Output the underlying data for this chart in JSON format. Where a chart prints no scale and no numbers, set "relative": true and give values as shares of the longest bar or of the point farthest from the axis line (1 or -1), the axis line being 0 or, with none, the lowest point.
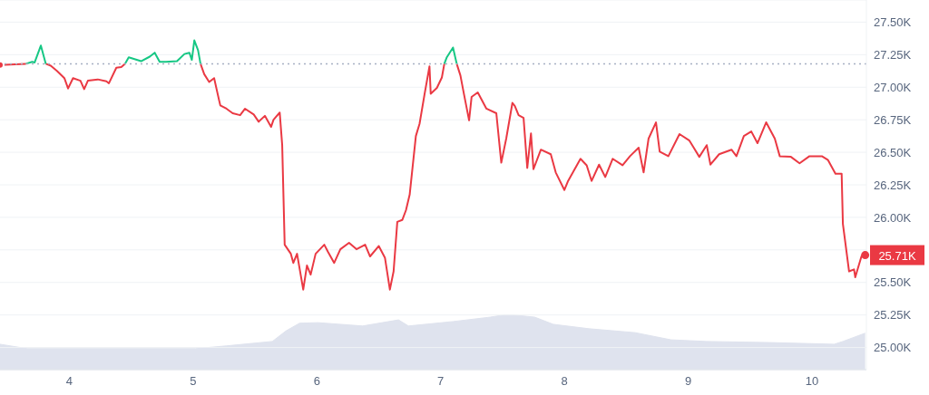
{
  "chart_data": [
    {
      "type": "line",
      "x": [
        3.44,
        3.65,
        3.7,
        3.72,
        3.77,
        3.81,
        3.85,
        3.9,
        3.96,
        3.99,
        4.03,
        4.09,
        4.12,
        4.15,
        4.23,
        4.3,
        4.32,
        4.38,
        4.42,
        4.45,
        4.48,
        4.58,
        4.65,
        4.69,
        4.73,
        4.78,
        4.87,
        4.93,
        4.97,
        4.99,
        5.01,
        5.04,
        5.06,
        5.09,
        5.13,
        5.17,
        5.21,
        5.22,
        5.27,
        5.32,
        5.38,
        5.42,
        5.49,
        5.53,
        5.58,
        5.63,
        5.65,
        5.7,
        5.72,
        5.74,
        5.79,
        5.81,
        5.84,
        5.89,
        5.92,
        5.95,
        5.99,
        6.06,
        6.09,
        6.14,
        6.19,
        6.26,
        6.32,
        6.39,
        6.43,
        6.5,
        6.55,
        6.59,
        6.62,
        6.65,
        6.69,
        6.72,
        6.75,
        6.8,
        6.83,
        6.87,
        6.91,
        6.92,
        6.97,
        7.01,
        7.03,
        7.05,
        7.1,
        7.13,
        7.16,
        7.19,
        7.23,
        7.25,
        7.3,
        7.37,
        7.45,
        7.49,
        7.53,
        7.58,
        7.6,
        7.63,
        7.67,
        7.7,
        7.73,
        7.75,
        7.81,
        7.89,
        7.93,
        8.0,
        8.03,
        8.13,
        8.18,
        8.22,
        8.28,
        8.33,
        8.39,
        8.47,
        8.53,
        8.6,
        8.64,
        8.68,
        8.74,
        8.77,
        8.84,
        8.93,
        9.01,
        9.09,
        9.15,
        9.18,
        9.25,
        9.35,
        9.39,
        9.45,
        9.51,
        9.56,
        9.63,
        9.7,
        9.74,
        9.83,
        9.9,
        9.98,
        10.08,
        10.13,
        10.19,
        10.24,
        10.25,
        10.3,
        10.34,
        10.35,
        10.4,
        10.43
      ],
      "series": [
        {
          "color": "#ea3943",
          "values": [
            27170,
            27180,
            null,
            null,
            null,
            27180,
            27165,
            27125,
            27070,
            26990,
            27070,
            27050,
            26985,
            27050,
            27060,
            27045,
            27030,
            27150,
            27155,
            27180,
            null,
            null,
            null,
            null,
            null,
            null,
            null,
            null,
            null,
            null,
            null,
            null,
            27180,
            27100,
            27040,
            27070,
            26900,
            26860,
            26835,
            26800,
            26785,
            26835,
            26790,
            26735,
            26780,
            26695,
            26750,
            26805,
            26555,
            25790,
            25720,
            25650,
            25720,
            25445,
            25630,
            25560,
            25720,
            25790,
            25735,
            25650,
            25755,
            25805,
            25755,
            25790,
            25700,
            25780,
            25690,
            25445,
            25585,
            25965,
            25980,
            26055,
            26175,
            26625,
            26720,
            26945,
            27160,
            26950,
            26995,
            27075,
            27180,
            null,
            null,
            27180,
            27090,
            26940,
            26745,
            26925,
            26960,
            26835,
            26800,
            26420,
            26605,
            26880,
            26855,
            26785,
            26765,
            26380,
            26645,
            26370,
            26520,
            26485,
            26345,
            26210,
            26280,
            26450,
            26400,
            26280,
            26405,
            26310,
            26450,
            26400,
            26470,
            26535,
            26345,
            26605,
            26730,
            26505,
            26470,
            26640,
            26590,
            26465,
            26555,
            26405,
            26485,
            26520,
            26470,
            26625,
            26660,
            26570,
            26730,
            26605,
            26470,
            26465,
            26415,
            26470,
            26470,
            26440,
            26335,
            26335,
            25950,
            25585,
            25600,
            25540,
            25700,
            25710
          ]
        },
        {
          "color": "#16c784",
          "values": [
            null,
            27180,
            27195,
            27190,
            27320,
            27180,
            null,
            null,
            null,
            null,
            null,
            null,
            null,
            null,
            null,
            null,
            null,
            null,
            null,
            27180,
            27230,
            27200,
            27235,
            27265,
            27195,
            27195,
            27200,
            27255,
            27265,
            27210,
            27360,
            27285,
            27180,
            null,
            null,
            null,
            null,
            null,
            null,
            null,
            null,
            null,
            null,
            null,
            null,
            null,
            null,
            null,
            null,
            null,
            null,
            null,
            null,
            null,
            null,
            null,
            null,
            null,
            null,
            null,
            null,
            null,
            null,
            null,
            null,
            null,
            null,
            null,
            null,
            null,
            null,
            null,
            null,
            null,
            null,
            null,
            null,
            null,
            null,
            null,
            27180,
            27230,
            27305,
            27180,
            null,
            null,
            null,
            null,
            null,
            null,
            null,
            null,
            null,
            null,
            null,
            null,
            null,
            null,
            null,
            null,
            null,
            null,
            null,
            null,
            null,
            null,
            null,
            null,
            null,
            null,
            null,
            null,
            null,
            null,
            null,
            null,
            null,
            null,
            null,
            null,
            null,
            null,
            null,
            null,
            null,
            null,
            null,
            null,
            null,
            null,
            null,
            null,
            null,
            null,
            null,
            null,
            null,
            null,
            null,
            null,
            null,
            null,
            null,
            null,
            null,
            null
          ]
        }
      ],
      "xlim": [
        3.44,
        10.44
      ],
      "ylim": [
        24830,
        27670
      ],
      "yticks": [
        {
          "value": 25000,
          "label": "25.00K"
        },
        {
          "value": 25250,
          "label": "25.25K"
        },
        {
          "value": 25500,
          "label": "25.50K"
        },
        {
          "value": 25750,
          "label": null
        },
        {
          "value": 26000,
          "label": "26.00K"
        },
        {
          "value": 26250,
          "label": "26.25K"
        },
        {
          "value": 26500,
          "label": "26.50K"
        },
        {
          "value": 26750,
          "label": "26.75K"
        },
        {
          "value": 27000,
          "label": "27.00K"
        },
        {
          "value": 27250,
          "label": "27.25K"
        },
        {
          "value": 27500,
          "label": "27.50K"
        }
      ],
      "ref_lines": [
        {
          "axis": "y",
          "value": 27180,
          "color": "#a6b0c3",
          "line_style": "dotted"
        }
      ],
      "annotations": [
        {
          "text": "25.71K",
          "x": 10.43,
          "y": 25710
        }
      ],
      "grid": "y",
      "tick_labels": "y"
    },
    {
      "type": "area",
      "relative": true,
      "x": [
        3.44,
        3.66,
        5.02,
        5.27,
        5.64,
        5.75,
        5.86,
        6.01,
        6.37,
        6.66,
        6.74,
        7.1,
        7.4,
        7.54,
        7.76,
        7.91,
        8.2,
        8.57,
        8.86,
        9.15,
        9.66,
        10.18,
        10.25,
        10.43
      ],
      "series": [
        {
          "color": "#dfe3ee",
          "values": [
            0.46,
            0.38,
            0.38,
            0.43,
            0.51,
            0.7,
            0.84,
            0.85,
            0.79,
            0.9,
            0.79,
            0.87,
            0.95,
            1,
            0.95,
            0.82,
            0.74,
            0.67,
            0.54,
            0.51,
            0.49,
            0.46,
            0.51,
            0.66
          ]
        }
      ],
      "xlim": [
        3.44,
        10.44
      ],
      "xticks": [
        4,
        5,
        6,
        7,
        8,
        9,
        10
      ],
      "tick_labels": "x"
    }
  ]
}
